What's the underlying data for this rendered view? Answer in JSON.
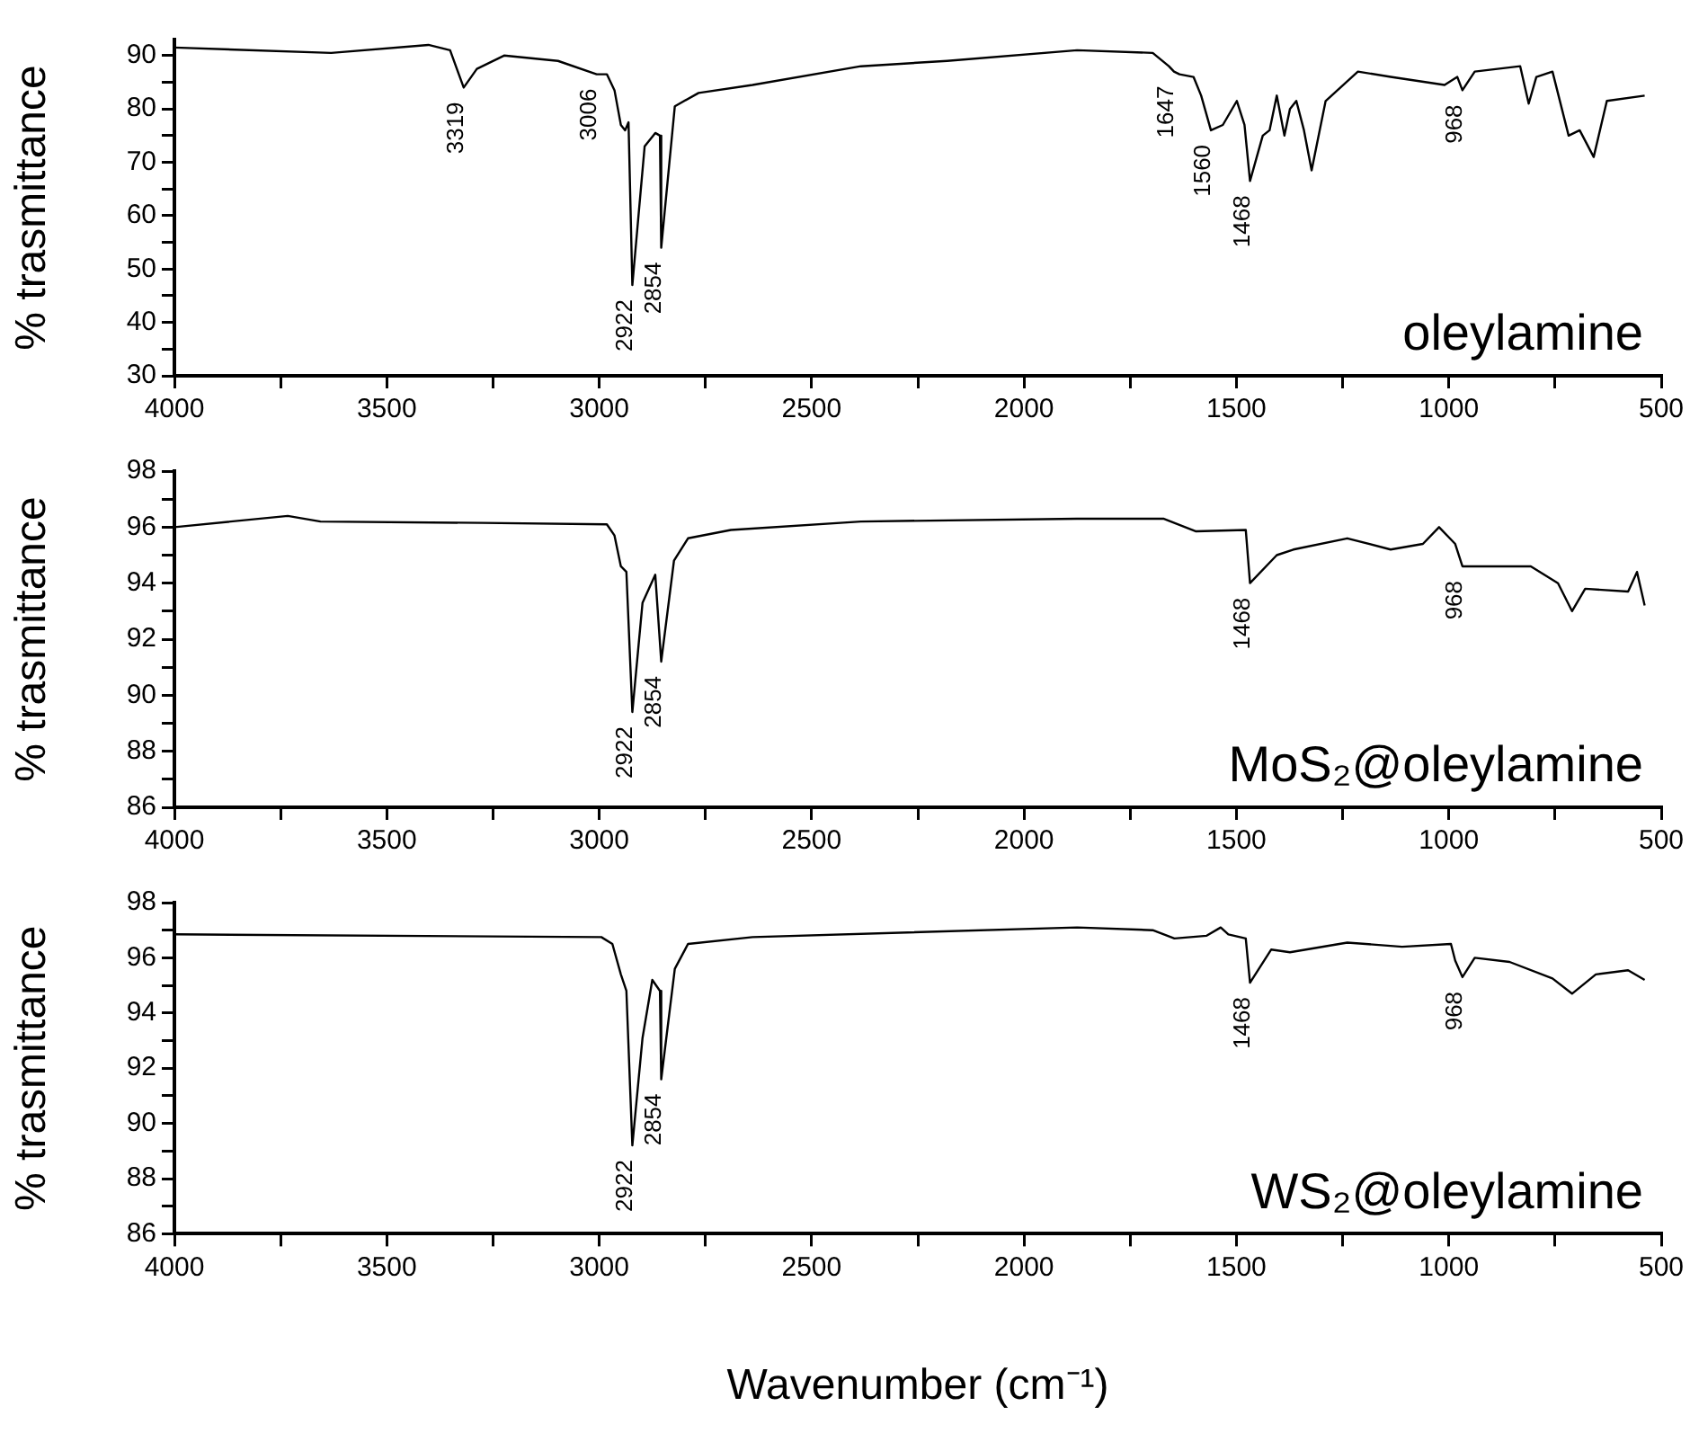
{
  "chart_data": [
    {
      "type": "line",
      "ylabel": "% trasmittance",
      "xlim": [
        4000,
        500
      ],
      "ylim": [
        30,
        93
      ],
      "xticks": [
        4000,
        {
          "value": 3750,
          "label": null
        },
        3500,
        {
          "value": 3250,
          "label": null
        },
        3000,
        {
          "value": 2750,
          "label": null
        },
        2500,
        {
          "value": 2250,
          "label": null
        },
        2000,
        {
          "value": 1750,
          "label": null
        },
        1500,
        {
          "value": 1250,
          "label": null
        },
        1000,
        {
          "value": 750,
          "label": null
        },
        500
      ],
      "yticks": [
        30,
        {
          "value": 35,
          "label": null
        },
        40,
        {
          "value": 45,
          "label": null
        },
        50,
        {
          "value": 55,
          "label": null
        },
        60,
        {
          "value": 65,
          "label": null
        },
        70,
        {
          "value": 75,
          "label": null
        },
        80,
        {
          "value": 85,
          "label": null
        },
        90
      ],
      "series": [
        {
          "name": "oleylamine",
          "color": "#000000",
          "x": [
            4000,
            3631,
            3402,
            3351,
            3319,
            3288,
            3224,
            3097,
            3006,
            2982,
            2964,
            2949,
            2939,
            2931,
            2922,
            2893,
            2868,
            2857,
            2854,
            2822,
            2766,
            2639,
            2384,
            2181,
            1875,
            1697,
            1659,
            1647,
            1634,
            1601,
            1583,
            1560,
            1532,
            1499,
            1481,
            1468,
            1438,
            1422,
            1405,
            1387,
            1374,
            1359,
            1341,
            1323,
            1290,
            1214,
            1137,
            1010,
            980,
            968,
            939,
            832,
            812,
            794,
            756,
            718,
            692,
            659,
            628,
            539
          ],
          "values": [
            91.5,
            90.5,
            92,
            91,
            84,
            87.5,
            90,
            89,
            86.5,
            86.5,
            83.5,
            77,
            76,
            77.5,
            47,
            73,
            75.5,
            75,
            54,
            80.5,
            83,
            84.5,
            88,
            89,
            91,
            90.5,
            88,
            87,
            86.5,
            86,
            82.5,
            76,
            77,
            81.5,
            77,
            66.5,
            75,
            76,
            82.5,
            75,
            80,
            81.5,
            76,
            68.5,
            81.5,
            87,
            86,
            84.5,
            86,
            83.5,
            87,
            88,
            81,
            86,
            87,
            75,
            76,
            71,
            81.5,
            82.5
          ]
        }
      ],
      "annotations": [
        {
          "text": "3319",
          "x": 3319,
          "y": 84
        },
        {
          "text": "3006",
          "x": 3006,
          "y": 86.5
        },
        {
          "text": "2922",
          "x": 2922,
          "y": 47
        },
        {
          "text": "2854",
          "x": 2854,
          "y": 54
        },
        {
          "text": "1647",
          "x": 1647,
          "y": 87
        },
        {
          "text": "1560",
          "x": 1560,
          "y": 76
        },
        {
          "text": "1468",
          "x": 1468,
          "y": 66.5
        },
        {
          "text": "968",
          "x": 968,
          "y": 83.5
        }
      ]
    },
    {
      "type": "line",
      "ylabel": "% trasmittance",
      "xlim": [
        4000,
        500
      ],
      "ylim": [
        86,
        98
      ],
      "xticks": [
        4000,
        {
          "value": 3750,
          "label": null
        },
        3500,
        {
          "value": 3250,
          "label": null
        },
        3000,
        {
          "value": 2750,
          "label": null
        },
        2500,
        {
          "value": 2250,
          "label": null
        },
        2000,
        {
          "value": 1750,
          "label": null
        },
        1500,
        {
          "value": 1250,
          "label": null
        },
        1000,
        {
          "value": 750,
          "label": null
        },
        500
      ],
      "yticks": [
        86,
        {
          "value": 87,
          "label": null
        },
        88,
        {
          "value": 89,
          "label": null
        },
        90,
        {
          "value": 91,
          "label": null
        },
        92,
        {
          "value": 93,
          "label": null
        },
        94,
        {
          "value": 95,
          "label": null
        },
        96,
        {
          "value": 97,
          "label": null
        },
        98
      ],
      "series": [
        {
          "name": "MoS₂@oleylamine",
          "color": "#000000",
          "x": [
            4000,
            3733,
            3656,
            3275,
            2982,
            2964,
            2949,
            2936,
            2922,
            2898,
            2868,
            2854,
            2824,
            2791,
            2690,
            2384,
            1875,
            1672,
            1595,
            1478,
            1468,
            1405,
            1366,
            1239,
            1137,
            1061,
            1023,
            985,
            968,
            908,
            807,
            743,
            710,
            679,
            578,
            557,
            539
          ],
          "values": [
            96.0,
            96.4,
            96.2,
            96.15,
            96.1,
            95.7,
            94.6,
            94.4,
            89.4,
            93.3,
            94.3,
            91.2,
            94.8,
            95.6,
            95.9,
            96.2,
            96.3,
            96.3,
            95.85,
            95.9,
            94.0,
            95,
            95.2,
            95.6,
            95.2,
            95.4,
            96.0,
            95.4,
            94.6,
            94.6,
            94.6,
            94.0,
            93.0,
            93.8,
            93.7,
            94.4,
            93.2
          ]
        }
      ],
      "annotations": [
        {
          "text": "2922",
          "x": 2922,
          "y": 89.4
        },
        {
          "text": "2854",
          "x": 2854,
          "y": 91.2
        },
        {
          "text": "1468",
          "x": 1468,
          "y": 94.0
        },
        {
          "text": "968",
          "x": 968,
          "y": 94.6
        }
      ]
    },
    {
      "type": "line",
      "ylabel": "% trasmittance",
      "xlabel": "Wavenumber (cm⁻¹)",
      "xlim": [
        4000,
        500
      ],
      "ylim": [
        86,
        98
      ],
      "xticks": [
        4000,
        {
          "value": 3750,
          "label": null
        },
        3500,
        {
          "value": 3250,
          "label": null
        },
        3000,
        {
          "value": 2750,
          "label": null
        },
        2500,
        {
          "value": 2250,
          "label": null
        },
        2000,
        {
          "value": 1750,
          "label": null
        },
        1500,
        {
          "value": 1250,
          "label": null
        },
        1000,
        {
          "value": 750,
          "label": null
        },
        500
      ],
      "yticks": [
        86,
        {
          "value": 87,
          "label": null
        },
        88,
        {
          "value": 89,
          "label": null
        },
        90,
        {
          "value": 91,
          "label": null
        },
        92,
        {
          "value": 93,
          "label": null
        },
        94,
        {
          "value": 95,
          "label": null
        },
        96,
        {
          "value": 97,
          "label": null
        },
        98
      ],
      "series": [
        {
          "name": "WS₂@oleylamine",
          "color": "#000000",
          "x": [
            4000,
            2995,
            2969,
            2949,
            2936,
            2922,
            2898,
            2875,
            2857,
            2854,
            2822,
            2791,
            2639,
            1875,
            1697,
            1646,
            1570,
            1537,
            1519,
            1478,
            1468,
            1418,
            1374,
            1239,
            1110,
            995,
            985,
            968,
            939,
            857,
            756,
            710,
            654,
            578,
            539
          ],
          "values": [
            96.85,
            96.75,
            96.5,
            95.4,
            94.8,
            89.2,
            93.1,
            95.2,
            94.8,
            91.6,
            95.6,
            96.5,
            96.75,
            97.1,
            97.0,
            96.7,
            96.8,
            97.1,
            96.85,
            96.7,
            95.1,
            96.3,
            96.2,
            96.55,
            96.4,
            96.5,
            95.9,
            95.3,
            96.0,
            95.85,
            95.25,
            94.7,
            95.4,
            95.55,
            95.2
          ]
        }
      ],
      "annotations": [
        {
          "text": "2922",
          "x": 2922,
          "y": 89.2
        },
        {
          "text": "2854",
          "x": 2854,
          "y": 91.6
        },
        {
          "text": "1468",
          "x": 1468,
          "y": 95.1
        },
        {
          "text": "968",
          "x": 968,
          "y": 95.3
        }
      ]
    }
  ]
}
